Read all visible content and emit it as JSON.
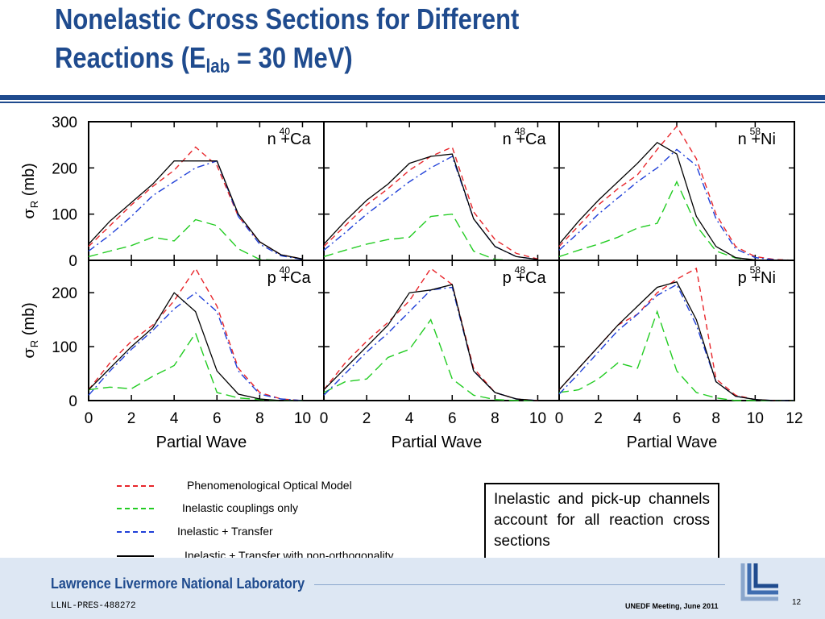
{
  "title": {
    "line1": "Nonelastic Cross Sections for Different",
    "line2_pre": "Reactions (E",
    "line2_sub": "lab",
    "line2_post": " = 30 MeV)"
  },
  "colors": {
    "accent": "#1f4b8e",
    "phenomenological": "#e8262b",
    "inelastic": "#22cc22",
    "transfer": "#1f3fd8",
    "nonorth": "#000000"
  },
  "chart_data": {
    "type": "line",
    "xlabel": "Partial Wave",
    "ylabel_symbol": "σ",
    "ylabel_sub": "R",
    "ylabel_unit": " (mb)",
    "top_row": {
      "ylim": [
        0,
        300
      ],
      "yticks": [
        "0",
        "100",
        "200",
        "300"
      ],
      "panels": [
        {
          "label_pre": "n + ",
          "label_sup": "40",
          "label_el": "Ca",
          "series": [
            {
              "key": "phenomenological",
              "x": [
                0,
                1,
                2,
                3,
                4,
                5,
                6,
                7,
                8,
                9,
                10
              ],
              "y": [
                30,
                75,
                120,
                160,
                195,
                245,
                205,
                95,
                40,
                12,
                3
              ]
            },
            {
              "key": "inelastic",
              "x": [
                0,
                1,
                2,
                3,
                4,
                5,
                6,
                7,
                8,
                9,
                10
              ],
              "y": [
                8,
                20,
                32,
                50,
                42,
                88,
                75,
                25,
                2,
                0,
                0
              ]
            },
            {
              "key": "transfer",
              "x": [
                0,
                1,
                2,
                3,
                4,
                5,
                6,
                7,
                8,
                9,
                10
              ],
              "y": [
                20,
                55,
                95,
                140,
                170,
                200,
                215,
                95,
                35,
                10,
                2
              ]
            },
            {
              "key": "nonorth",
              "x": [
                0,
                1,
                2,
                3,
                4,
                5,
                6,
                7,
                8,
                9,
                10
              ],
              "y": [
                35,
                85,
                125,
                165,
                215,
                215,
                215,
                100,
                40,
                12,
                3
              ]
            }
          ]
        },
        {
          "label_pre": "n + ",
          "label_sup": "48",
          "label_el": "Ca",
          "series": [
            {
              "key": "phenomenological",
              "x": [
                0,
                1,
                2,
                3,
                4,
                5,
                6,
                7,
                8,
                9,
                10
              ],
              "y": [
                30,
                75,
                120,
                155,
                195,
                225,
                245,
                105,
                45,
                15,
                3
              ]
            },
            {
              "key": "inelastic",
              "x": [
                0,
                1,
                2,
                3,
                4,
                5,
                6,
                7,
                8,
                9,
                10
              ],
              "y": [
                8,
                22,
                35,
                45,
                50,
                95,
                100,
                20,
                2,
                0,
                0
              ]
            },
            {
              "key": "transfer",
              "x": [
                0,
                1,
                2,
                3,
                4,
                5,
                6,
                7,
                8,
                9,
                10
              ],
              "y": [
                22,
                60,
                100,
                135,
                170,
                200,
                225,
                90,
                30,
                8,
                2
              ]
            },
            {
              "key": "nonorth",
              "x": [
                0,
                1,
                2,
                3,
                4,
                5,
                6,
                7,
                8,
                9,
                10
              ],
              "y": [
                35,
                85,
                130,
                165,
                210,
                225,
                230,
                90,
                30,
                8,
                2
              ]
            }
          ]
        },
        {
          "label_pre": "n + ",
          "label_sup": "58",
          "label_el": "Ni",
          "series": [
            {
              "key": "phenomenological",
              "x": [
                0,
                1,
                2,
                3,
                4,
                5,
                6,
                7,
                8,
                9,
                10,
                11,
                12
              ],
              "y": [
                30,
                75,
                120,
                155,
                185,
                240,
                290,
                220,
                100,
                30,
                8,
                2,
                0
              ]
            },
            {
              "key": "inelastic",
              "x": [
                0,
                1,
                2,
                3,
                4,
                5,
                6,
                7,
                8,
                9,
                10,
                11,
                12
              ],
              "y": [
                8,
                22,
                35,
                50,
                70,
                80,
                170,
                75,
                20,
                5,
                0,
                0,
                0
              ]
            },
            {
              "key": "transfer",
              "x": [
                0,
                1,
                2,
                3,
                4,
                5,
                6,
                7,
                8,
                9,
                10,
                11,
                12
              ],
              "y": [
                22,
                60,
                100,
                135,
                170,
                200,
                240,
                205,
                90,
                25,
                6,
                1,
                0
              ]
            },
            {
              "key": "nonorth",
              "x": [
                0,
                1,
                2,
                3,
                4,
                5,
                6,
                7,
                8,
                9,
                10,
                11,
                12
              ],
              "y": [
                35,
                85,
                130,
                170,
                210,
                255,
                230,
                95,
                30,
                6,
                1,
                0,
                0
              ]
            }
          ]
        }
      ]
    },
    "bottom_row": {
      "ylim": [
        0,
        260
      ],
      "yticks": [
        "0",
        "100",
        "200"
      ],
      "xticks": [
        "0",
        "2",
        "4",
        "6",
        "8",
        "10"
      ],
      "xticks_last": [
        "0",
        "2",
        "4",
        "6",
        "8",
        "10",
        "12"
      ],
      "panels": [
        {
          "label_pre": "p + ",
          "label_sup": "40",
          "label_el": "Ca",
          "series": [
            {
              "key": "phenomenological",
              "x": [
                0,
                1,
                2,
                3,
                4,
                5,
                6,
                7,
                8,
                9,
                10
              ],
              "y": [
                20,
                70,
                110,
                140,
                185,
                245,
                175,
                60,
                15,
                3,
                0
              ]
            },
            {
              "key": "inelastic",
              "x": [
                0,
                1,
                2,
                3,
                4,
                5,
                6,
                7,
                8,
                9,
                10
              ],
              "y": [
                20,
                25,
                22,
                45,
                65,
                125,
                15,
                5,
                2,
                0,
                0
              ]
            },
            {
              "key": "transfer",
              "x": [
                0,
                1,
                2,
                3,
                4,
                5,
                6,
                7,
                8,
                9,
                10
              ],
              "y": [
                10,
                55,
                95,
                130,
                170,
                200,
                165,
                55,
                12,
                3,
                0
              ]
            },
            {
              "key": "nonorth",
              "x": [
                0,
                1,
                2,
                3,
                4,
                5,
                6,
                7,
                8,
                9,
                10
              ],
              "y": [
                20,
                60,
                100,
                135,
                200,
                165,
                55,
                12,
                3,
                0,
                0
              ]
            }
          ]
        },
        {
          "label_pre": "p + ",
          "label_sup": "48",
          "label_el": "Ca",
          "series": [
            {
              "key": "phenomenological",
              "x": [
                0,
                1,
                2,
                3,
                4,
                5,
                6,
                7,
                8,
                9,
                10
              ],
              "y": [
                20,
                70,
                110,
                145,
                185,
                245,
                215,
                60,
                15,
                3,
                0
              ]
            },
            {
              "key": "inelastic",
              "x": [
                0,
                1,
                2,
                3,
                4,
                5,
                6,
                7,
                8,
                9,
                10
              ],
              "y": [
                15,
                35,
                40,
                80,
                95,
                150,
                40,
                10,
                2,
                0,
                0
              ]
            },
            {
              "key": "transfer",
              "x": [
                0,
                1,
                2,
                3,
                4,
                5,
                6,
                7,
                8,
                9,
                10
              ],
              "y": [
                10,
                50,
                90,
                125,
                165,
                205,
                210,
                55,
                15,
                3,
                0
              ]
            },
            {
              "key": "nonorth",
              "x": [
                0,
                1,
                2,
                3,
                4,
                5,
                6,
                7,
                8,
                9,
                10
              ],
              "y": [
                20,
                60,
                100,
                140,
                200,
                205,
                215,
                55,
                15,
                3,
                0
              ]
            }
          ]
        },
        {
          "label_pre": "p + ",
          "label_sup": "58",
          "label_el": "Ni",
          "series": [
            {
              "key": "phenomenological",
              "x": [
                0,
                1,
                2,
                3,
                4,
                5,
                6,
                7,
                8,
                9,
                10,
                11,
                12
              ],
              "y": [
                20,
                60,
                100,
                140,
                160,
                200,
                225,
                245,
                40,
                10,
                2,
                0,
                0
              ]
            },
            {
              "key": "inelastic",
              "x": [
                0,
                1,
                2,
                3,
                4,
                5,
                6,
                7,
                8,
                9,
                10,
                11,
                12
              ],
              "y": [
                15,
                20,
                40,
                70,
                60,
                165,
                55,
                15,
                5,
                0,
                0,
                0,
                0
              ]
            },
            {
              "key": "transfer",
              "x": [
                0,
                1,
                2,
                3,
                4,
                5,
                6,
                7,
                8,
                9,
                10,
                11,
                12
              ],
              "y": [
                12,
                50,
                90,
                130,
                160,
                195,
                215,
                140,
                35,
                8,
                2,
                0,
                0
              ]
            },
            {
              "key": "nonorth",
              "x": [
                0,
                1,
                2,
                3,
                4,
                5,
                6,
                7,
                8,
                9,
                10,
                11,
                12
              ],
              "y": [
                20,
                60,
                100,
                140,
                175,
                210,
                220,
                150,
                35,
                8,
                2,
                0,
                0
              ]
            }
          ]
        }
      ]
    },
    "legend": [
      {
        "key": "phenomenological",
        "label": "Phenomenological Optical Model"
      },
      {
        "key": "inelastic",
        "label": "Inelastic couplings only"
      },
      {
        "key": "transfer",
        "label": "Inelastic + Transfer"
      },
      {
        "key": "nonorth",
        "label": "Inelastic + Transfer with non-orthogonality"
      }
    ]
  },
  "note": "Inelastic and pick-up channels account for all reaction cross sections",
  "footer": {
    "lab": "Lawrence Livermore National Laboratory",
    "pres_id": "LLNL-PRES-488272",
    "meeting": "UNEDF Meeting, June 2011",
    "page": "12"
  }
}
